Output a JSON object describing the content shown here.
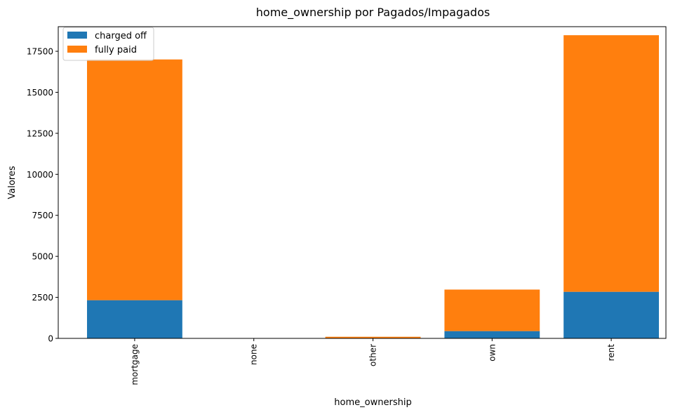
{
  "chart_data": {
    "type": "bar",
    "stacked": true,
    "title": "home_ownership por Pagados/Impagados",
    "xlabel": "home_ownership",
    "ylabel": "Valores",
    "categories": [
      "mortgage",
      "none",
      "other",
      "own",
      "rent"
    ],
    "series": [
      {
        "name": "charged off",
        "color": "#1f77b4",
        "values": [
          2327,
          0,
          18,
          443,
          2839
        ]
      },
      {
        "name": "fully paid",
        "color": "#ff7f0e",
        "values": [
          14675,
          3,
          80,
          2532,
          15641
        ]
      }
    ],
    "ylim": [
      0,
      19000
    ],
    "yticks": [
      "0",
      "2500",
      "5000",
      "7500",
      "10000",
      "12500",
      "15000",
      "17500"
    ],
    "grid": false,
    "legend_position": "top-left"
  }
}
